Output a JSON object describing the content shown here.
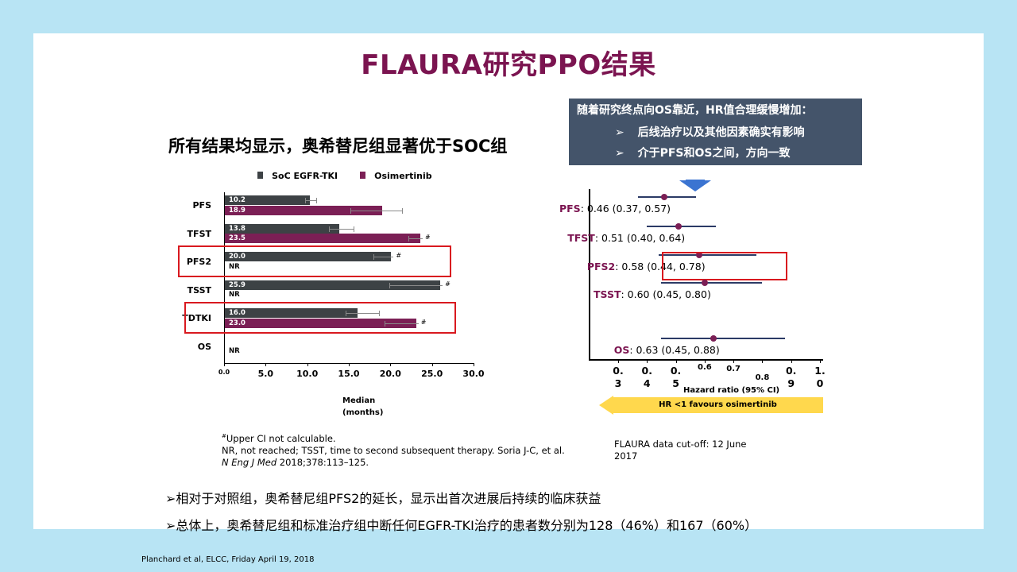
{
  "slide_title": "FLAURA研究PPO结果",
  "subtitle": "所有结果均显示，奥希替尼组显著优于SOC组",
  "callout": {
    "heading": "随着研究终点向OS靠近，HR值合理缓慢增加：",
    "bullet_marker": "➢",
    "items": [
      "后线治疗以及其他因素确实有影响",
      "介于PFS和OS之间，方向一致"
    ]
  },
  "chart_data": [
    {
      "type": "bar",
      "orientation": "horizontal",
      "categories": [
        "PFS",
        "TFST",
        "PFS2",
        "TSST",
        "TDTKI",
        "OS"
      ],
      "series": [
        {
          "name": "SoC EGFR-TKI",
          "color": "#3d4245",
          "values": [
            10.2,
            13.8,
            20.0,
            25.9,
            16.0,
            null
          ],
          "labels": [
            "10.2",
            "13.8",
            "20.0",
            "25.9",
            "16.0",
            ""
          ],
          "ci": [
            [
              9.7,
              11.1
            ],
            [
              12.6,
              15.6
            ],
            [
              18.0,
              null
            ],
            [
              19.9,
              null
            ],
            [
              14.6,
              18.6
            ],
            null
          ]
        },
        {
          "name": "Osimertinib",
          "color": "#7b1f55",
          "values": [
            18.9,
            23.5,
            null,
            null,
            23.0,
            null
          ],
          "labels": [
            "18.9",
            "23.5",
            "NR",
            "NR",
            "23.0",
            "NR"
          ],
          "ci": [
            [
              15.2,
              21.4
            ],
            [
              22.2,
              null
            ],
            null,
            null,
            [
              19.3,
              null
            ],
            null
          ]
        }
      ],
      "xlim": [
        0,
        30
      ],
      "xticks": [
        "0.0",
        "5.0",
        "10.0",
        "15.0",
        "20.0",
        "25.0",
        "30.0"
      ],
      "xlabel": "Median\n(months)",
      "upper_ci_marker": "#",
      "highlighted": [
        "PFS2",
        "TDTKI"
      ]
    },
    {
      "type": "forest",
      "endpoints": [
        {
          "name": "PFS",
          "hr": 0.46,
          "lo": 0.37,
          "hi": 0.57,
          "text": ": 0.46 (0.37, 0.57)"
        },
        {
          "name": "TFST",
          "hr": 0.51,
          "lo": 0.4,
          "hi": 0.64,
          "text": ": 0.51 (0.40, 0.64)"
        },
        {
          "name": "PFS2",
          "hr": 0.58,
          "lo": 0.44,
          "hi": 0.78,
          "text": ": 0.58 (0.44, 0.78)"
        },
        {
          "name": "TSST",
          "hr": 0.6,
          "lo": 0.45,
          "hi": 0.8,
          "text": ": 0.60 (0.45, 0.80)"
        },
        {
          "name": "OS",
          "hr": 0.63,
          "lo": 0.45,
          "hi": 0.88,
          "text": ": 0.63 (0.45, 0.88)"
        }
      ],
      "xlim": [
        0.3,
        1.0
      ],
      "ticks": [
        {
          "v": 0.3,
          "a": "0.",
          "b": "3"
        },
        {
          "v": 0.4,
          "a": "0.",
          "b": "4"
        },
        {
          "v": 0.5,
          "a": "0.",
          "b": "5"
        },
        {
          "v": 0.6,
          "a": "0.6",
          "b": ""
        },
        {
          "v": 0.7,
          "a": "0.7",
          "b": ""
        },
        {
          "v": 0.8,
          "a": "0.8",
          "b": ""
        },
        {
          "v": 0.9,
          "a": "0.",
          "b": "9"
        },
        {
          "v": 1.0,
          "a": "1.",
          "b": "0"
        }
      ],
      "xlabel": "Hazard ratio (95% CI)",
      "arrow_label": "HR <1 favours osimertinib",
      "highlighted": [
        "PFS2"
      ]
    }
  ],
  "footnote": {
    "sup": "#",
    "line1": "Upper CI not calculable.",
    "line2": "NR, not reached; TSST, time to second subsequent therapy.  Soria J-C, et al.",
    "journal": "N Eng J Med",
    "citation": " 2018;378:113–125."
  },
  "cutoff_note": "FLAURA data cut-off: 12 June 2017",
  "bullets": [
    "➢相对于对照组，奥希替尼组PFS2的延长，显示出首次进展后持续的临床获益",
    "➢总体上，奥希替尼组和标准治疗组中断任何EGFR-TKI治疗的患者数分别为128（46%）和167（60%）"
  ],
  "source": "Planchard et al, ELCC, Friday April 19, 2018",
  "colors": {
    "title": "#7b1450",
    "soc": "#3d4245",
    "osi": "#7b1f55",
    "callout_bg": "#44546a",
    "highlight": "#d9191f",
    "arrow": "#ffd84d",
    "forest_line": "#2b3a66",
    "page_bg": "#b8e4f4"
  }
}
